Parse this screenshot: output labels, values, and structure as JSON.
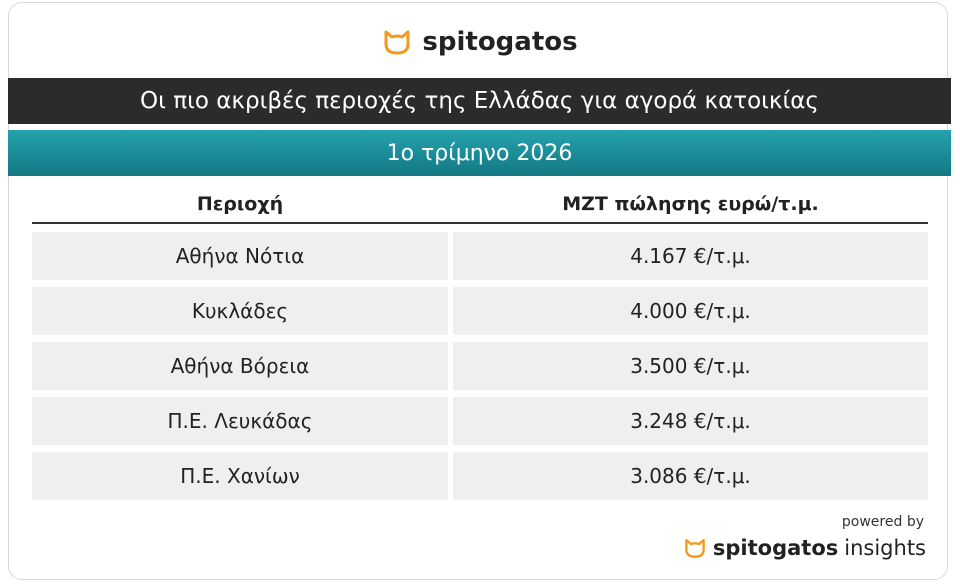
{
  "header": {
    "brand": "spitogatos",
    "title": "Οι πιο ακριβές περιοχές της Ελλάδας για αγορά κατοικίας",
    "subtitle": "1ο τρίμηνο 2026"
  },
  "table": {
    "columns": [
      "Περιοχή",
      "ΜΖΤ πώλησης ευρώ/τ.μ."
    ],
    "rows": [
      [
        "Αθήνα Νότια",
        "4.167 €/τ.μ."
      ],
      [
        "Κυκλάδες",
        "4.000 €/τ.μ."
      ],
      [
        "Αθήνα Βόρεια",
        "3.500 €/τ.μ."
      ],
      [
        "Π.Ε. Λευκάδας",
        "3.248 €/τ.μ."
      ],
      [
        "Π.Ε. Χανίων",
        "3.086 €/τ.μ."
      ]
    ]
  },
  "footer": {
    "powered": "powered by",
    "brand": "spitogatos",
    "suffix": "insights"
  }
}
